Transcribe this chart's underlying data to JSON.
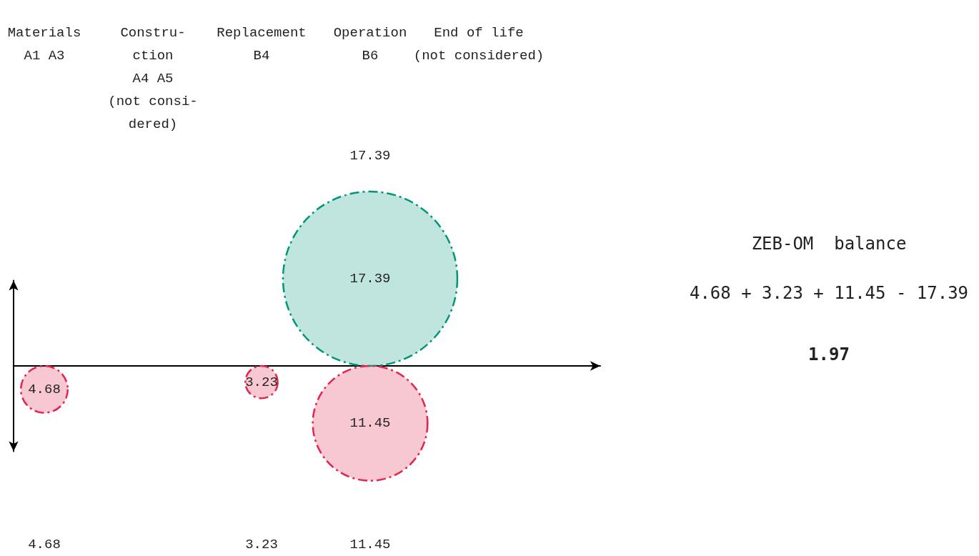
{
  "chart_data": {
    "type": "other",
    "categories": [
      "Materials\nA1 A3",
      "Constru-\nction\nA4 A5\n(not consi-\ndered)",
      "Replacement\nB4",
      "Operation\nB6",
      "End of life\n(not considered)"
    ],
    "series": [
      {
        "color": "#00977a",
        "values": [
          null,
          null,
          null,
          17.39,
          null
        ]
      },
      {
        "color": "#e5234d",
        "values": [
          4.68,
          null,
          3.23,
          11.45,
          null
        ]
      }
    ],
    "data_labels": true,
    "annotations": [
      "ZEB-OM  balance",
      "4.68 + 3.23 + 11.45 - 17.39",
      "1.97",
      {
        "text": "17.39",
        "x": "Operation\nB6"
      },
      {
        "text": "4.68",
        "x": "Materials\nA1 A3"
      },
      {
        "text": "3.23",
        "x": "Replacement\nB4"
      },
      {
        "text": "11.45",
        "x": "Operation\nB6"
      }
    ]
  }
}
